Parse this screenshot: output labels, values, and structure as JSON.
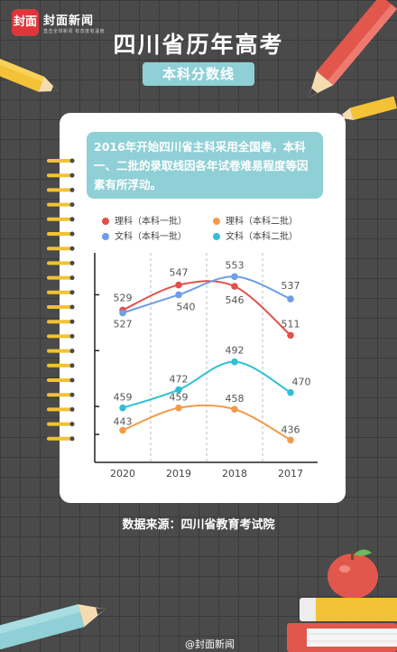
{
  "brand": {
    "logo_glyph": "封面",
    "name": "封面新闻",
    "tagline": "直击全球新闻 有态度有温度"
  },
  "title": "四川省历年高考",
  "subtitle": "本科分数线",
  "note": "2016年开始四川省主科采用全国卷，本科一、二批的录取线因各年试卷难易程度等因素有所浮动。",
  "source": "数据来源：四川省教育考试院",
  "footer": "@封面新闻",
  "chart_data": {
    "type": "line",
    "categories": [
      "2020",
      "2019",
      "2018",
      "2017"
    ],
    "series": [
      {
        "name": "理科（本科一批）",
        "color": "#e1514b",
        "values": [
          529,
          547,
          546,
          511
        ]
      },
      {
        "name": "文科（本科一批）",
        "color": "#6f9de6",
        "values": [
          527,
          540,
          553,
          537
        ]
      },
      {
        "name": "理科（本科二批）",
        "color": "#f39a4a",
        "values": [
          443,
          459,
          458,
          436
        ]
      },
      {
        "name": "文科（本科二批）",
        "color": "#2ec0d4",
        "values": [
          459,
          472,
          492,
          470
        ]
      }
    ],
    "ylim": [
      420,
      570
    ],
    "grid": "vertical dashed"
  }
}
